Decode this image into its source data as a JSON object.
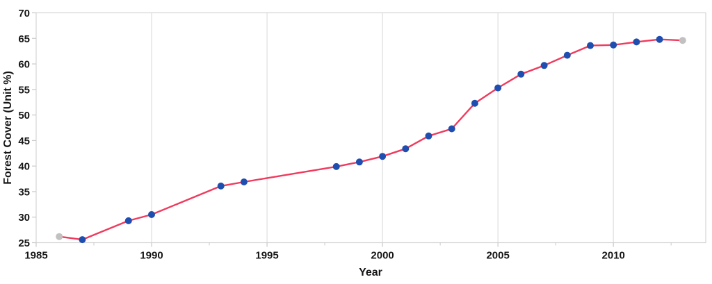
{
  "chart_data": {
    "type": "line",
    "title": "",
    "xlabel": "Year",
    "ylabel": "Forest Cover (Unit %)",
    "x": [
      1986,
      1987,
      1989,
      1990,
      1993,
      1994,
      1998,
      1999,
      2000,
      2001,
      2002,
      2003,
      2004,
      2005,
      2006,
      2007,
      2008,
      2009,
      2010,
      2011,
      2012,
      2013
    ],
    "values": [
      26.2,
      25.6,
      29.3,
      30.5,
      36.1,
      36.9,
      39.9,
      40.8,
      41.9,
      43.4,
      45.9,
      47.3,
      52.3,
      55.3,
      58.0,
      59.7,
      61.7,
      63.6,
      63.7,
      64.3,
      64.8,
      64.6
    ],
    "gray_endpoint_years": [
      1986,
      2013
    ],
    "xlim": [
      1985,
      2014
    ],
    "ylim": [
      25,
      70
    ],
    "y_ticks": [
      25,
      30,
      35,
      40,
      45,
      50,
      55,
      60,
      65,
      70
    ],
    "x_major_ticks": [
      1985,
      1990,
      1995,
      2000,
      2005,
      2010
    ],
    "x_minor_ticks": [
      1987.5,
      1992.5,
      1997.5,
      2002.5,
      2007.5,
      2012.5
    ],
    "gridline_years": [
      1990,
      1995,
      2000,
      2005,
      2010
    ],
    "grid": "vertical-only",
    "legend_position": "none",
    "colors": {
      "line": "#ef3a5d",
      "marker": "#1f4eb1",
      "endpoint_marker": "#c1c1c1",
      "gridline": "#dedede",
      "frame": "#d4d4d4",
      "tick": "#c9c9c9",
      "text": "#151515"
    }
  }
}
